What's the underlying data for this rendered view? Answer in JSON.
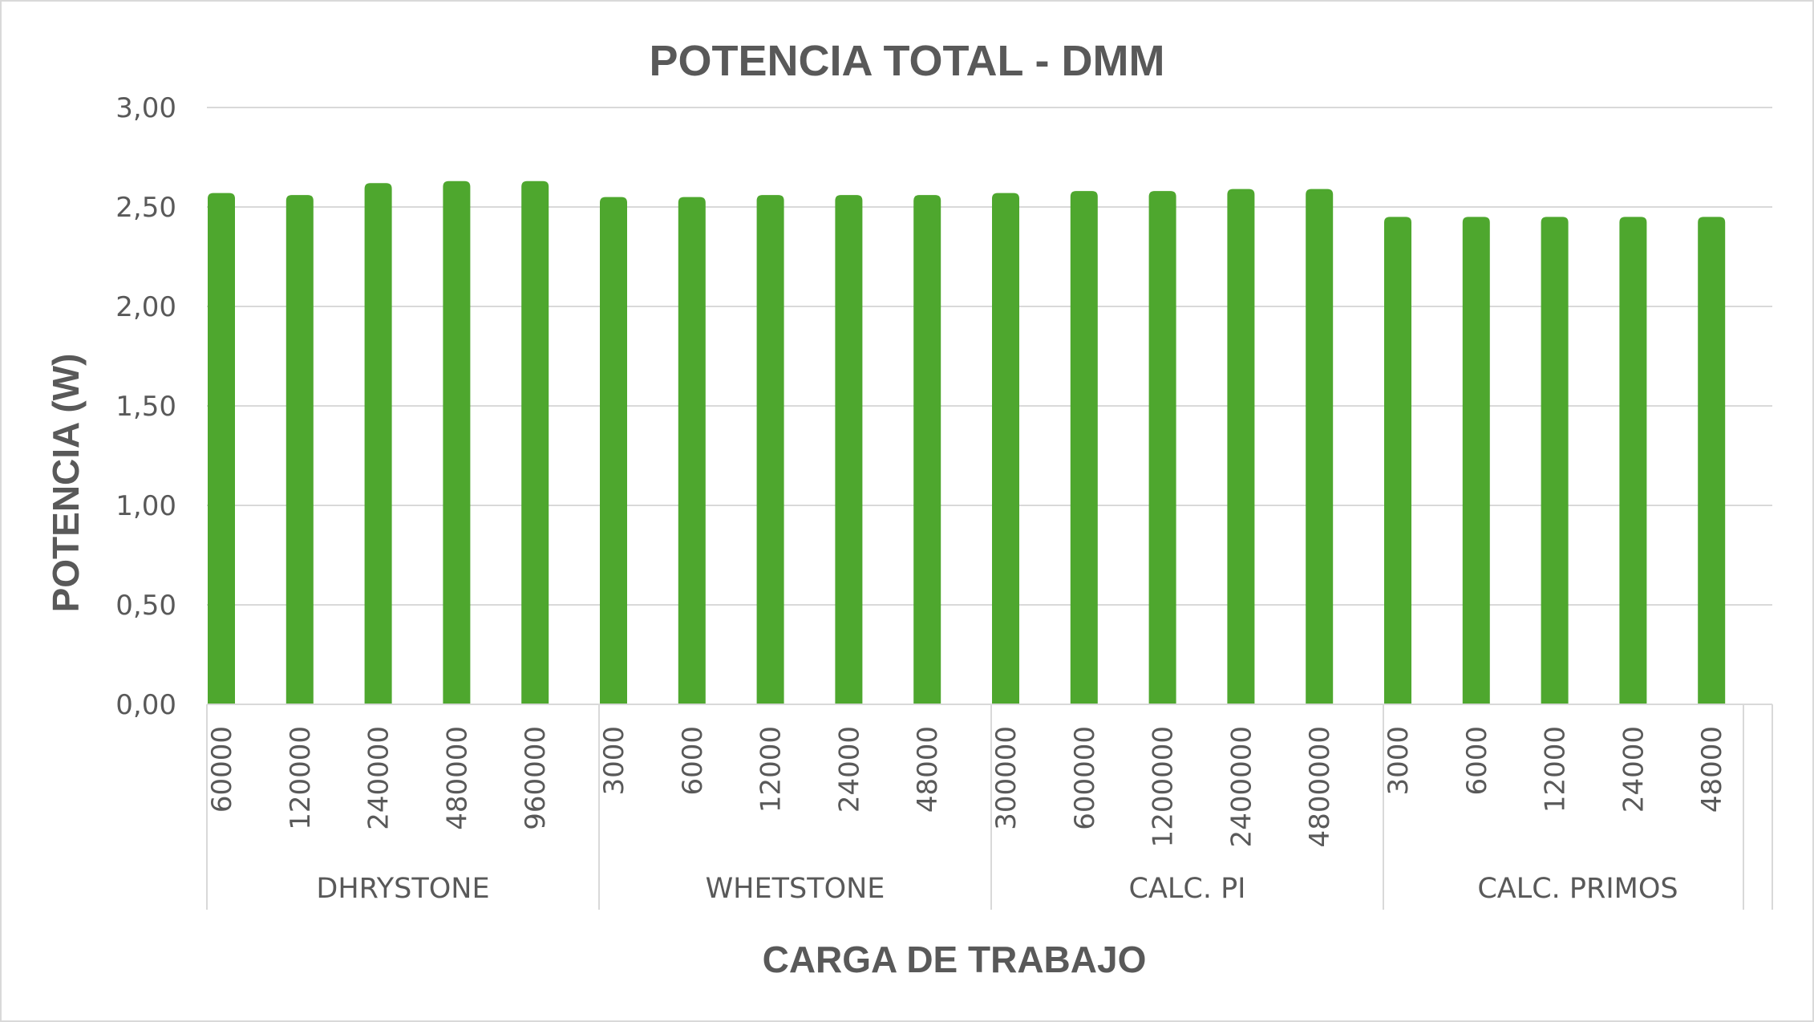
{
  "chart_data": {
    "type": "bar",
    "title": "POTENCIA TOTAL - DMM",
    "xlabel": "CARGA DE TRABAJO",
    "ylabel": "POTENCIA (W)",
    "ylim": [
      0,
      3
    ],
    "yticks": [
      "0,00",
      "0,50",
      "1,00",
      "1,50",
      "2,00",
      "2,50",
      "3,00"
    ],
    "grid": true,
    "legend": "none",
    "colors": {
      "bar": "#4ea72e",
      "grid": "#d9d9d9",
      "text": "#595959"
    },
    "groups": [
      {
        "name": "DHRYSTONE",
        "categories": [
          "60000",
          "120000",
          "240000",
          "480000",
          "960000"
        ],
        "values": [
          2.57,
          2.56,
          2.62,
          2.63,
          2.63
        ]
      },
      {
        "name": "WHETSTONE",
        "categories": [
          "3000",
          "6000",
          "12000",
          "24000",
          "48000"
        ],
        "values": [
          2.55,
          2.55,
          2.56,
          2.56,
          2.56
        ]
      },
      {
        "name": "CALC. PI",
        "categories": [
          "300000",
          "600000",
          "1200000",
          "2400000",
          "4800000"
        ],
        "values": [
          2.57,
          2.58,
          2.58,
          2.59,
          2.59
        ]
      },
      {
        "name": "CALC. PRIMOS",
        "categories": [
          "3000",
          "6000",
          "12000",
          "24000",
          "48000"
        ],
        "values": [
          2.45,
          2.45,
          2.45,
          2.45,
          2.45
        ]
      }
    ]
  }
}
